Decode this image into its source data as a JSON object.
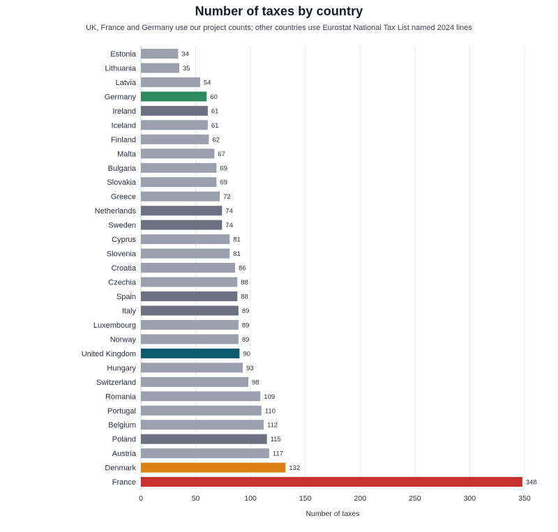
{
  "chart_data": {
    "type": "bar",
    "orientation": "horizontal",
    "title": "Number of taxes by country",
    "subtitle": "UK, France and Germany use our project counts; other countries use Eurostat National Tax List named 2024 lines",
    "xlabel": "Number of taxes",
    "ylabel": "",
    "xlim": [
      0,
      350
    ],
    "x_ticks": [
      0,
      50,
      100,
      150,
      200,
      250,
      300,
      350
    ],
    "grid": true,
    "categories": [
      "Estonia",
      "Lithuania",
      "Latvia",
      "Germany",
      "Ireland",
      "Iceland",
      "Finland",
      "Malta",
      "Bulgaria",
      "Slovakia",
      "Greece",
      "Netherlands",
      "Sweden",
      "Cyprus",
      "Slovenia",
      "Croatia",
      "Czechia",
      "Spain",
      "Italy",
      "Luxembourg",
      "Norway",
      "United Kingdom",
      "Hungary",
      "Switzerland",
      "Romania",
      "Portugal",
      "Belgium",
      "Poland",
      "Austria",
      "Denmark",
      "France"
    ],
    "values": [
      34,
      35,
      54,
      60,
      61,
      61,
      62,
      67,
      69,
      69,
      72,
      74,
      74,
      81,
      81,
      86,
      88,
      88,
      89,
      89,
      89,
      90,
      93,
      98,
      109,
      110,
      112,
      115,
      117,
      132,
      348
    ],
    "bar_colors": [
      "#9aa0ad",
      "#9aa0ad",
      "#9aa0ad",
      "#2e8a5c",
      "#6b7180",
      "#9aa0ad",
      "#9aa0ad",
      "#9aa0ad",
      "#9aa0ad",
      "#9aa0ad",
      "#9aa0ad",
      "#6b7180",
      "#6b7180",
      "#9aa0ad",
      "#9aa0ad",
      "#9aa0ad",
      "#9aa0ad",
      "#6b7180",
      "#6b7180",
      "#9aa0ad",
      "#9aa0ad",
      "#0b5a6e",
      "#9aa0ad",
      "#9aa0ad",
      "#9aa0ad",
      "#9aa0ad",
      "#9aa0ad",
      "#6b7180",
      "#9aa0ad",
      "#d98112",
      "#c9302c"
    ]
  }
}
